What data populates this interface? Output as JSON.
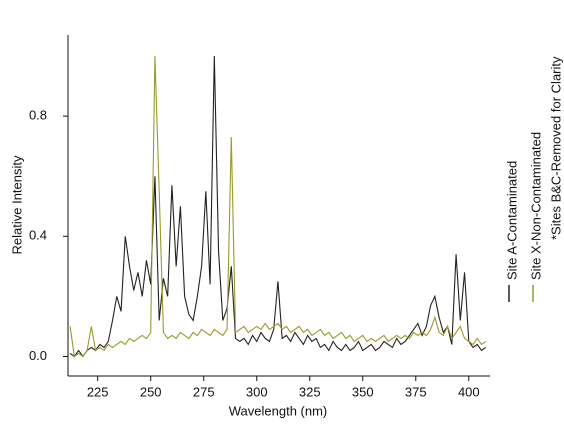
{
  "chart_data": {
    "type": "line",
    "x_label": "Wavelength (nm)",
    "y_label": "Relative Intensity",
    "annotation": "*Sites B&C-Removed for Clarity",
    "xlim": [
      211,
      410
    ],
    "ylim": [
      -0.065,
      1.07
    ],
    "xticks": [
      225,
      250,
      275,
      300,
      325,
      350,
      375,
      400
    ],
    "yticks": [
      {
        "value": 0,
        "label": "0.0"
      },
      0.4,
      0.8
    ],
    "x": [
      212,
      214,
      216,
      218,
      220,
      222,
      224,
      226,
      228,
      230,
      232,
      234,
      236,
      238,
      240,
      242,
      244,
      246,
      248,
      250,
      252,
      254,
      256,
      258,
      260,
      262,
      264,
      266,
      268,
      270,
      272,
      274,
      276,
      278,
      280,
      282,
      284,
      286,
      288,
      290,
      292,
      294,
      296,
      298,
      300,
      302,
      304,
      306,
      308,
      310,
      312,
      314,
      316,
      318,
      320,
      322,
      324,
      326,
      328,
      330,
      332,
      334,
      336,
      338,
      340,
      342,
      344,
      346,
      348,
      350,
      352,
      354,
      356,
      358,
      360,
      362,
      364,
      366,
      368,
      370,
      372,
      374,
      376,
      378,
      380,
      382,
      384,
      386,
      388,
      390,
      392,
      394,
      396,
      398,
      400,
      402,
      404,
      406,
      408
    ],
    "series": [
      {
        "name": "Site A-Contaminated",
        "color": "#222222",
        "values": [
          0.01,
          0.0,
          0.02,
          0.0,
          0.02,
          0.03,
          0.02,
          0.04,
          0.03,
          0.05,
          0.12,
          0.2,
          0.15,
          0.4,
          0.3,
          0.22,
          0.28,
          0.2,
          0.32,
          0.24,
          0.6,
          0.12,
          0.26,
          0.2,
          0.57,
          0.3,
          0.5,
          0.2,
          0.14,
          0.12,
          0.2,
          0.3,
          0.55,
          0.24,
          1.0,
          0.35,
          0.12,
          0.16,
          0.3,
          0.06,
          0.05,
          0.06,
          0.04,
          0.07,
          0.05,
          0.08,
          0.06,
          0.05,
          0.09,
          0.25,
          0.06,
          0.07,
          0.05,
          0.08,
          0.06,
          0.04,
          0.07,
          0.05,
          0.06,
          0.03,
          0.04,
          0.02,
          0.05,
          0.03,
          0.02,
          0.04,
          0.02,
          0.03,
          0.05,
          0.02,
          0.03,
          0.04,
          0.02,
          0.03,
          0.05,
          0.04,
          0.03,
          0.06,
          0.04,
          0.05,
          0.07,
          0.09,
          0.11,
          0.07,
          0.1,
          0.17,
          0.2,
          0.13,
          0.08,
          0.1,
          0.04,
          0.34,
          0.12,
          0.28,
          0.05,
          0.03,
          0.04,
          0.02,
          0.03
        ]
      },
      {
        "name": "Site X-Non-Contaminated",
        "color": "#9a9a2a",
        "values": [
          0.1,
          0.0,
          0.01,
          0.0,
          0.02,
          0.1,
          0.02,
          0.03,
          0.02,
          0.04,
          0.03,
          0.04,
          0.05,
          0.04,
          0.06,
          0.05,
          0.06,
          0.07,
          0.06,
          0.08,
          1.0,
          0.55,
          0.08,
          0.06,
          0.07,
          0.06,
          0.08,
          0.07,
          0.06,
          0.08,
          0.07,
          0.09,
          0.08,
          0.07,
          0.09,
          0.08,
          0.07,
          0.09,
          0.73,
          0.08,
          0.09,
          0.1,
          0.08,
          0.09,
          0.1,
          0.09,
          0.11,
          0.09,
          0.1,
          0.11,
          0.09,
          0.1,
          0.08,
          0.09,
          0.1,
          0.08,
          0.09,
          0.07,
          0.08,
          0.09,
          0.07,
          0.08,
          0.06,
          0.07,
          0.08,
          0.06,
          0.07,
          0.05,
          0.06,
          0.07,
          0.05,
          0.06,
          0.05,
          0.06,
          0.07,
          0.05,
          0.06,
          0.07,
          0.06,
          0.07,
          0.06,
          0.08,
          0.07,
          0.08,
          0.07,
          0.09,
          0.13,
          0.08,
          0.07,
          0.1,
          0.06,
          0.08,
          0.1,
          0.06,
          0.05,
          0.04,
          0.06,
          0.04,
          0.05
        ]
      }
    ]
  }
}
